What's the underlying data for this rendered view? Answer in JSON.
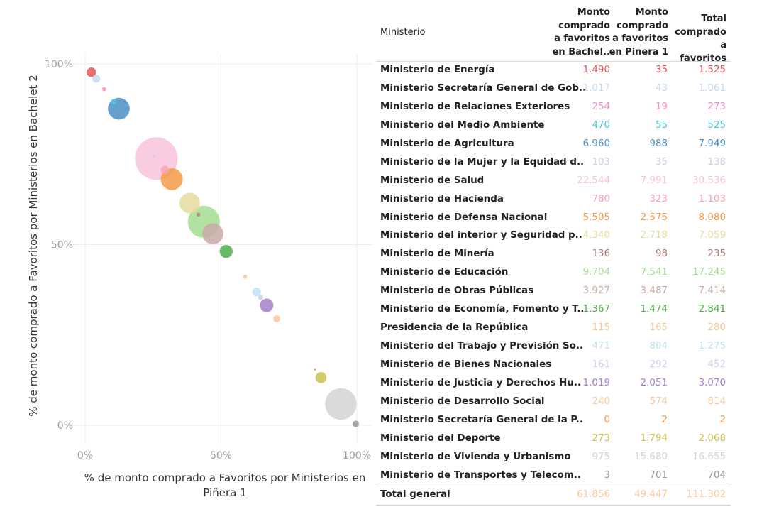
{
  "chart_data": [
    {
      "type": "scatter",
      "xlabel": "% de monto comprado a Favoritos por Ministerios en Piñera 1",
      "ylabel": "% de monto comprado a Favoritos por Ministerios en Bachelet 2",
      "xlim": [
        0,
        100
      ],
      "ylim": [
        0,
        100
      ],
      "x_ticks": [
        "0%",
        "50%",
        "100%"
      ],
      "y_ticks": [
        "0%",
        "50%",
        "100%"
      ],
      "grid": true,
      "points": [
        {
          "name": "Ministerio de Energía",
          "x": 2.3,
          "y": 97.7,
          "size": 1525,
          "color": "#e15759"
        },
        {
          "name": "Ministerio Secretaría General de Gob..",
          "x": 4.1,
          "y": 95.9,
          "size": 1061,
          "color": "#c9d8ef"
        },
        {
          "name": "Ministerio de Relaciones Exteriores",
          "x": 7.0,
          "y": 93.0,
          "size": 273,
          "color": "#f28fc7"
        },
        {
          "name": "Ministerio del Medio Ambiente",
          "x": 10.5,
          "y": 89.5,
          "size": 525,
          "color": "#4dc9e0"
        },
        {
          "name": "Ministerio de Agricultura",
          "x": 12.4,
          "y": 87.6,
          "size": 7949,
          "color": "#4e8fc4"
        },
        {
          "name": "Ministerio de la Mujer y la Equidad d..",
          "x": 25.4,
          "y": 74.6,
          "size": 138,
          "color": "#cfcfe3"
        },
        {
          "name": "Ministerio de Salud",
          "x": 26.2,
          "y": 73.8,
          "size": 30536,
          "color": "#f9c3dc"
        },
        {
          "name": "Ministerio de Hacienda",
          "x": 29.3,
          "y": 70.7,
          "size": 1103,
          "color": "#f7a5b5"
        },
        {
          "name": "Ministerio de Defensa Nacional",
          "x": 31.9,
          "y": 68.1,
          "size": 8080,
          "color": "#f59a48"
        },
        {
          "name": "Ministerio del interior y Seguridad p..",
          "x": 38.5,
          "y": 61.5,
          "size": 7059,
          "color": "#e4dca0"
        },
        {
          "name": "Ministerio de Minería",
          "x": 41.7,
          "y": 58.3,
          "size": 235,
          "color": "#b17a7a"
        },
        {
          "name": "Ministerio de Educación",
          "x": 43.7,
          "y": 56.3,
          "size": 17245,
          "color": "#a5dd92"
        },
        {
          "name": "Ministerio de Obras Públicas",
          "x": 47.0,
          "y": 53.0,
          "size": 7414,
          "color": "#c8aaa6"
        },
        {
          "name": "Ministerio de Economía, Fomento y T..",
          "x": 51.9,
          "y": 48.1,
          "size": 2841,
          "color": "#4fae4d"
        },
        {
          "name": "Presidencia de la República",
          "x": 58.9,
          "y": 41.1,
          "size": 280,
          "color": "#f8c894"
        },
        {
          "name": "Ministerio del Trabajo y Previsión So..",
          "x": 63.1,
          "y": 36.9,
          "size": 1275,
          "color": "#bfe3f3"
        },
        {
          "name": "Ministerio de Bienes Nacionales",
          "x": 64.6,
          "y": 35.4,
          "size": 452,
          "color": "#c6d3ec"
        },
        {
          "name": "Ministerio de Justicia y Derechos Hu..",
          "x": 66.8,
          "y": 33.2,
          "size": 3070,
          "color": "#a67fcc"
        },
        {
          "name": "Ministerio de Desarrollo Social",
          "x": 70.5,
          "y": 29.5,
          "size": 814,
          "color": "#f8c89a"
        },
        {
          "name": "Ministerio Secretaría General de la P..",
          "x": 84.6,
          "y": 15.4,
          "size": 2,
          "color": "#f29a3a"
        },
        {
          "name": "Ministerio del Deporte",
          "x": 86.8,
          "y": 13.2,
          "size": 2068,
          "color": "#c9c34f"
        },
        {
          "name": "Ministerio de Vivienda y Urbanismo",
          "x": 94.1,
          "y": 5.9,
          "size": 16655,
          "color": "#d3d3d3"
        },
        {
          "name": "Ministerio de Transportes y Telecom..",
          "x": 99.6,
          "y": 0.4,
          "size": 704,
          "color": "#9a9a9a"
        }
      ]
    },
    {
      "type": "table",
      "columns": [
        "Ministerio",
        "Monto comprado a favoritos en Bachel..",
        "Monto comprado a favoritos en Piñera 1",
        "Total comprado a favoritos"
      ],
      "rows": [
        {
          "name": "Ministerio de Energía",
          "bachelet": "1.490",
          "pinera": "35",
          "total": "1.525",
          "color": "#e15759"
        },
        {
          "name": "Ministerio Secretaría General de Gob..",
          "bachelet": "1.017",
          "pinera": "43",
          "total": "1.061",
          "color": "#c9d8ef"
        },
        {
          "name": "Ministerio de Relaciones Exteriores",
          "bachelet": "254",
          "pinera": "19",
          "total": "273",
          "color": "#f28fc7"
        },
        {
          "name": "Ministerio del Medio Ambiente",
          "bachelet": "470",
          "pinera": "55",
          "total": "525",
          "color": "#4dc9e0"
        },
        {
          "name": "Ministerio de Agricultura",
          "bachelet": "6.960",
          "pinera": "988",
          "total": "7.949",
          "color": "#4e8fc4"
        },
        {
          "name": "Ministerio de la Mujer y la Equidad d..",
          "bachelet": "103",
          "pinera": "35",
          "total": "138",
          "color": "#cfcfe3"
        },
        {
          "name": "Ministerio de Salud",
          "bachelet": "22.544",
          "pinera": "7.991",
          "total": "30.536",
          "color": "#f9c3dc"
        },
        {
          "name": "Ministerio de Hacienda",
          "bachelet": "780",
          "pinera": "323",
          "total": "1.103",
          "color": "#f7a5b5"
        },
        {
          "name": "Ministerio de Defensa Nacional",
          "bachelet": "5.505",
          "pinera": "2.575",
          "total": "8.080",
          "color": "#f59a48"
        },
        {
          "name": "Ministerio del interior y Seguridad p..",
          "bachelet": "4.340",
          "pinera": "2.718",
          "total": "7.059",
          "color": "#e4dca0"
        },
        {
          "name": "Ministerio de Minería",
          "bachelet": "136",
          "pinera": "98",
          "total": "235",
          "color": "#b17a7a"
        },
        {
          "name": "Ministerio de Educación",
          "bachelet": "9.704",
          "pinera": "7.541",
          "total": "17.245",
          "color": "#a5dd92"
        },
        {
          "name": "Ministerio de Obras Públicas",
          "bachelet": "3.927",
          "pinera": "3.487",
          "total": "7.414",
          "color": "#c8aaa6"
        },
        {
          "name": "Ministerio de Economía, Fomento y T..",
          "bachelet": "1.367",
          "pinera": "1.474",
          "total": "2.841",
          "color": "#4fae4d"
        },
        {
          "name": "Presidencia de la República",
          "bachelet": "115",
          "pinera": "165",
          "total": "280",
          "color": "#f8c894"
        },
        {
          "name": "Ministerio del Trabajo y Previsión So..",
          "bachelet": "471",
          "pinera": "804",
          "total": "1.275",
          "color": "#bfe3f3"
        },
        {
          "name": "Ministerio de Bienes Nacionales",
          "bachelet": "161",
          "pinera": "292",
          "total": "452",
          "color": "#c6d3ec"
        },
        {
          "name": "Ministerio de Justicia y Derechos Hu..",
          "bachelet": "1.019",
          "pinera": "2.051",
          "total": "3.070",
          "color": "#a67fcc"
        },
        {
          "name": "Ministerio de Desarrollo Social",
          "bachelet": "240",
          "pinera": "574",
          "total": "814",
          "color": "#f8c89a"
        },
        {
          "name": "Ministerio Secretaría General de la P..",
          "bachelet": "0",
          "pinera": "2",
          "total": "2",
          "color": "#f29a3a"
        },
        {
          "name": "Ministerio del Deporte",
          "bachelet": "273",
          "pinera": "1.794",
          "total": "2.068",
          "color": "#c9c34f"
        },
        {
          "name": "Ministerio de Vivienda y Urbanismo",
          "bachelet": "975",
          "pinera": "15.680",
          "total": "16.655",
          "color": "#d3d3d3"
        },
        {
          "name": "Ministerio de Transportes y Telecom..",
          "bachelet": "3",
          "pinera": "701",
          "total": "704",
          "color": "#9a9a9a"
        }
      ],
      "total_row": {
        "name": "Total general",
        "bachelet": "61.856",
        "pinera": "49.447",
        "total": "111.302",
        "color": "#f8c89a"
      }
    }
  ]
}
